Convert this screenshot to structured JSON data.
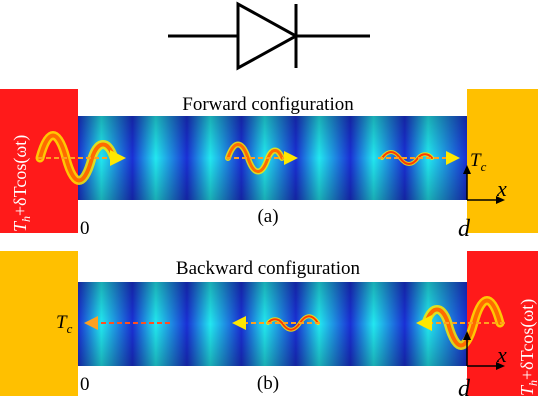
{
  "symbol": {
    "name": "diode"
  },
  "panels": [
    {
      "id": "a",
      "title": "Forward configuration",
      "caption": "(a)",
      "origin_label": "0",
      "end_label": "d",
      "axis_label": "x",
      "hot_side": "left",
      "hot_label": {
        "base": "T",
        "sub": "h",
        "rest": "+δTcos(ωt)"
      },
      "cold_label": {
        "base": "T",
        "sub": "c"
      },
      "wave_direction": "right"
    },
    {
      "id": "b",
      "title": "Backward configuration",
      "caption": "(b)",
      "origin_label": "0",
      "end_label": "d",
      "axis_label": "x",
      "hot_side": "right",
      "hot_label": {
        "base": "T",
        "sub": "h",
        "rest": "+δTcos(ωt)"
      },
      "cold_label": {
        "base": "T",
        "sub": "c"
      },
      "wave_direction": "left"
    }
  ],
  "colors": {
    "hot": "#ff1a1a",
    "cold": "#ffc000",
    "channel_dark": "#1a2fd6",
    "channel_light": "#22e8f0",
    "wave_main": "#ff6a00",
    "wave_glow": "#ffe800",
    "arrow": "#ffa020"
  }
}
